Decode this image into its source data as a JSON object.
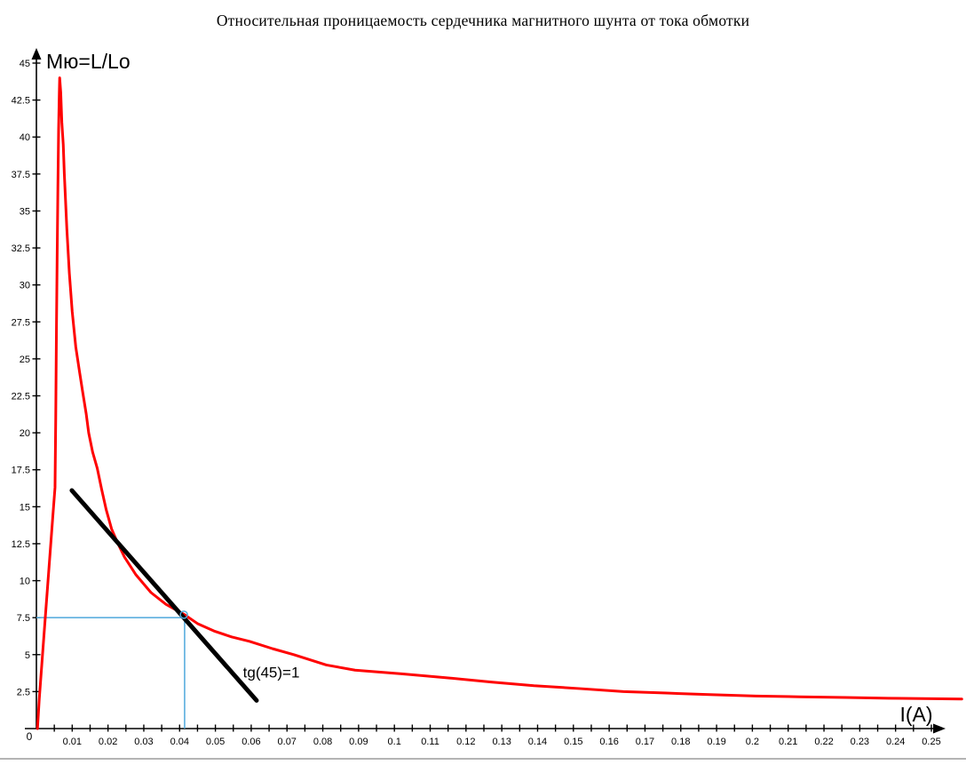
{
  "title": "Относительная проницаемость сердечника магнитного шунта от тока обмотки",
  "chart_data": {
    "type": "line",
    "title": "Относительная проницаемость сердечника магнитного шунта от тока обмотки",
    "xlabel": "I(A)",
    "ylabel": "Мю=L/Lo",
    "xlim": [
      0,
      0.2585
    ],
    "ylim": [
      0,
      45
    ],
    "grid": false,
    "legend": "none",
    "x_major_tick_step": 0.01,
    "x_minor_tick_step": 0.005,
    "y_tick_step": 2.5,
    "origin_label": "0",
    "x_tick_labels": [
      "0.01",
      "0.02",
      "0.03",
      "0.04",
      "0.05",
      "0.06",
      "0.07",
      "0.08",
      "0.09",
      "0.1",
      "0.11",
      "0.12",
      "0.13",
      "0.14",
      "0.15",
      "0.16",
      "0.17",
      "0.18",
      "0.19",
      "0.2",
      "0.21",
      "0.22",
      "0.23",
      "0.24",
      "0.25"
    ],
    "y_tick_labels": [
      "2.5",
      "5",
      "7.5",
      "10",
      "12.5",
      "15",
      "17.5",
      "20",
      "22.5",
      "25",
      "27.5",
      "30",
      "32.5",
      "35",
      "37.5",
      "40",
      "42.5",
      "45"
    ],
    "series": [
      {
        "name": "permeability-curve",
        "color": "#ff0000",
        "width": 3,
        "points": [
          [
            0.0003,
            0
          ],
          [
            0.0008,
            2
          ],
          [
            0.0015,
            4.3
          ],
          [
            0.0022,
            6.6
          ],
          [
            0.003,
            9.2
          ],
          [
            0.0038,
            11.8
          ],
          [
            0.0046,
            14.4
          ],
          [
            0.0052,
            16.3
          ],
          [
            0.0054,
            21
          ],
          [
            0.0056,
            27
          ],
          [
            0.0058,
            32
          ],
          [
            0.006,
            36.5
          ],
          [
            0.0062,
            40.5
          ],
          [
            0.0064,
            43
          ],
          [
            0.0065,
            44
          ],
          [
            0.0068,
            43
          ],
          [
            0.0071,
            41
          ],
          [
            0.0075,
            39.5
          ],
          [
            0.0078,
            37.5
          ],
          [
            0.0085,
            33.8
          ],
          [
            0.0092,
            30.8
          ],
          [
            0.01,
            28.2
          ],
          [
            0.011,
            25.8
          ],
          [
            0.012,
            24.2
          ],
          [
            0.0129,
            22.8
          ],
          [
            0.0139,
            21.3
          ],
          [
            0.0146,
            20.0
          ],
          [
            0.0157,
            18.7
          ],
          [
            0.017,
            17.6
          ],
          [
            0.0182,
            16.2
          ],
          [
            0.0195,
            14.8
          ],
          [
            0.021,
            13.5
          ],
          [
            0.0226,
            12.6
          ],
          [
            0.0246,
            11.6
          ],
          [
            0.0278,
            10.4
          ],
          [
            0.032,
            9.2
          ],
          [
            0.0362,
            8.4
          ],
          [
            0.0414,
            7.7
          ],
          [
            0.045,
            7.1
          ],
          [
            0.0496,
            6.6
          ],
          [
            0.0545,
            6.2
          ],
          [
            0.0595,
            5.9
          ],
          [
            0.066,
            5.4
          ],
          [
            0.0719,
            5.0
          ],
          [
            0.081,
            4.3
          ],
          [
            0.089,
            3.95
          ],
          [
            0.102,
            3.7
          ],
          [
            0.114,
            3.45
          ],
          [
            0.127,
            3.15
          ],
          [
            0.139,
            2.9
          ],
          [
            0.152,
            2.7
          ],
          [
            0.164,
            2.5
          ],
          [
            0.176,
            2.4
          ],
          [
            0.188,
            2.3
          ],
          [
            0.201,
            2.2
          ],
          [
            0.213,
            2.15
          ],
          [
            0.226,
            2.1
          ],
          [
            0.238,
            2.05
          ],
          [
            0.2585,
            2.0
          ]
        ]
      },
      {
        "name": "tangent-line",
        "color": "#000000",
        "width": 5,
        "points": [
          [
            0.0099,
            16.1
          ],
          [
            0.0615,
            1.9
          ]
        ]
      }
    ],
    "crosshair": {
      "x": 0.0414,
      "y": 7.5,
      "color": "#4fa8dc",
      "width": 1.5
    },
    "marker": {
      "x": 0.0412,
      "y": 7.7,
      "radius": 4,
      "color": "#4fa8dc"
    },
    "annotation": {
      "text": "tg(45)=1",
      "x": 0.0577,
      "y": 3.45,
      "font_size": 17
    }
  },
  "colors": {
    "axis": "#000000",
    "tick_text": "#000000",
    "background": "#ffffff",
    "bottom_divider": "#b4b4b4"
  }
}
